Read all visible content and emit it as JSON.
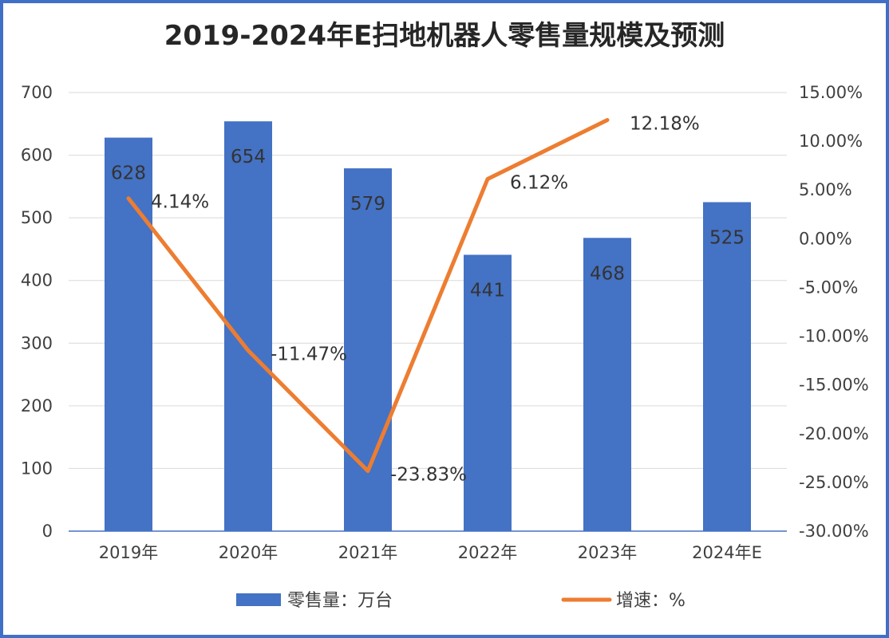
{
  "chart_data": {
    "type": "bar+line",
    "title": "2019-2024年E扫地机器人零售量规模及预测",
    "categories": [
      "2019年",
      "2020年",
      "2021年",
      "2022年",
      "2023年",
      "2024年E"
    ],
    "series": [
      {
        "name": "零售量：万台",
        "type": "bar",
        "axis": "left",
        "values": [
          628,
          654,
          579,
          441,
          468,
          525
        ],
        "labels": [
          "628",
          "654",
          "579",
          "441",
          "468",
          "525"
        ],
        "color": "#4472c4"
      },
      {
        "name": "增速：%",
        "type": "line",
        "axis": "right",
        "values": [
          4.14,
          -11.47,
          -23.83,
          6.12,
          12.18,
          null
        ],
        "labels": [
          "4.14%",
          "-11.47%",
          "-23.83%",
          "6.12%",
          "12.18%",
          ""
        ],
        "color": "#ed7d31"
      }
    ],
    "y_left": {
      "min": 0,
      "max": 700,
      "ticks": [
        0,
        100,
        200,
        300,
        400,
        500,
        600,
        700
      ],
      "tick_labels": [
        "0",
        "100",
        "200",
        "300",
        "400",
        "500",
        "600",
        "700"
      ]
    },
    "y_right": {
      "min": -30,
      "max": 15,
      "ticks": [
        -30,
        -25,
        -20,
        -15,
        -10,
        -5,
        0,
        5,
        10,
        15
      ],
      "tick_labels": [
        "-30.00%",
        "-25.00%",
        "-20.00%",
        "-15.00%",
        "-10.00%",
        "-5.00%",
        "0.00%",
        "5.00%",
        "10.00%",
        "15.00%"
      ]
    },
    "grid": true,
    "legend": "bottom"
  }
}
